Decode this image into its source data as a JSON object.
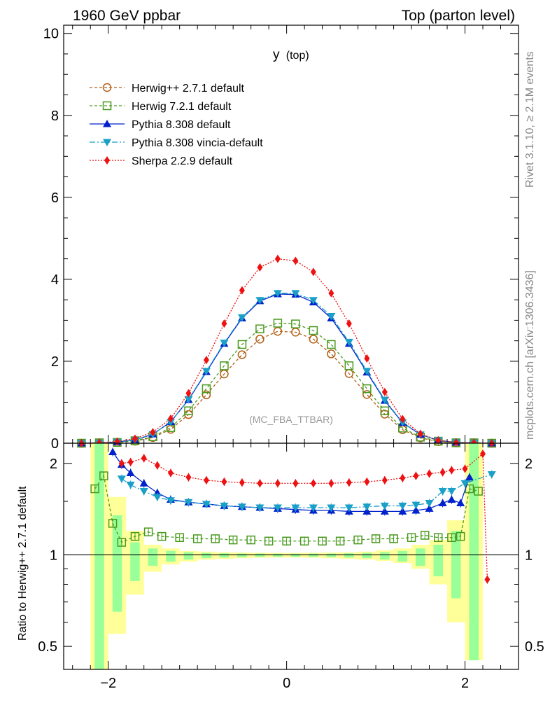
{
  "header": {
    "left": "1960 GeV ppbar",
    "right": "Top (parton level)"
  },
  "side_labels": {
    "rivet": "Rivet 3.1.10, ≥ 2.1M events",
    "mcplots": "mcplots.cern.ch [arXiv:1306.3436]"
  },
  "plot_title": {
    "main": "y",
    "sub": "(top)"
  },
  "watermark": "(MC_FBA_TTBAR)",
  "ratio_ylabel": "Ratio to Herwig++ 2.7.1 default",
  "chart_data": [
    {
      "type": "line",
      "panel": "main",
      "xlim": [
        -2.5,
        2.6
      ],
      "ylim": [
        0,
        10.2
      ],
      "yticks": [
        "0",
        "2",
        "4",
        "6",
        "8",
        "10"
      ],
      "xticks": [
        "−2",
        "0",
        "2"
      ],
      "legend_position": "top-left",
      "series": [
        {
          "name": "Herwig++ 2.7.1 default",
          "color": "#b25f16",
          "marker": "circle",
          "dash": "4,3",
          "x": [
            -2.3,
            -2.1,
            -1.9,
            -1.7,
            -1.5,
            -1.3,
            -1.1,
            -0.9,
            -0.7,
            -0.5,
            -0.3,
            -0.1,
            0.1,
            0.3,
            0.5,
            0.7,
            0.9,
            1.1,
            1.3,
            1.5,
            1.7,
            1.9,
            2.1,
            2.3
          ],
          "y": [
            0.0,
            0.01,
            0.02,
            0.05,
            0.14,
            0.34,
            0.7,
            1.18,
            1.69,
            2.16,
            2.54,
            2.73,
            2.71,
            2.54,
            2.18,
            1.7,
            1.19,
            0.71,
            0.33,
            0.13,
            0.04,
            0.01,
            0.01,
            0.0
          ]
        },
        {
          "name": "Herwig 7.2.1 default",
          "color": "#4a9a1e",
          "marker": "square",
          "dash": "4,3",
          "x": [
            -2.3,
            -2.1,
            -1.9,
            -1.7,
            -1.5,
            -1.3,
            -1.1,
            -0.9,
            -0.7,
            -0.5,
            -0.3,
            -0.1,
            0.1,
            0.3,
            0.5,
            0.7,
            0.9,
            1.1,
            1.3,
            1.5,
            1.7,
            1.9,
            2.1,
            2.3
          ],
          "y": [
            0.0,
            0.01,
            0.02,
            0.06,
            0.16,
            0.38,
            0.79,
            1.33,
            1.89,
            2.41,
            2.79,
            2.93,
            2.91,
            2.75,
            2.41,
            1.89,
            1.33,
            0.79,
            0.37,
            0.15,
            0.05,
            0.01,
            0.01,
            0.0
          ]
        },
        {
          "name": "Pythia 8.308 default",
          "color": "#0022cc",
          "marker": "triangle-up",
          "dash": "",
          "x": [
            -2.3,
            -2.1,
            -1.9,
            -1.7,
            -1.5,
            -1.3,
            -1.1,
            -0.9,
            -0.7,
            -0.5,
            -0.3,
            -0.1,
            0.1,
            0.3,
            0.5,
            0.7,
            0.9,
            1.1,
            1.3,
            1.5,
            1.7,
            1.9,
            2.1,
            2.3
          ],
          "y": [
            0.0,
            0.01,
            0.03,
            0.08,
            0.22,
            0.52,
            1.06,
            1.74,
            2.43,
            3.05,
            3.47,
            3.64,
            3.63,
            3.44,
            3.05,
            2.43,
            1.73,
            1.04,
            0.5,
            0.21,
            0.07,
            0.02,
            0.01,
            0.0
          ]
        },
        {
          "name": "Pythia 8.308 vincia-default",
          "color": "#1aa0c8",
          "marker": "triangle-down",
          "dash": "8,3,2,3",
          "x": [
            -2.3,
            -2.1,
            -1.9,
            -1.7,
            -1.5,
            -1.3,
            -1.1,
            -0.9,
            -0.7,
            -0.5,
            -0.3,
            -0.1,
            0.1,
            0.3,
            0.5,
            0.7,
            0.9,
            1.1,
            1.3,
            1.5,
            1.7,
            1.9,
            2.1,
            2.3
          ],
          "y": [
            0.0,
            0.01,
            0.03,
            0.08,
            0.22,
            0.52,
            1.07,
            1.76,
            2.45,
            3.07,
            3.49,
            3.66,
            3.66,
            3.49,
            3.1,
            2.47,
            1.76,
            1.06,
            0.51,
            0.21,
            0.07,
            0.02,
            0.01,
            0.0
          ]
        },
        {
          "name": "Sherpa 2.2.9 default",
          "color": "#ee1111",
          "marker": "diamond",
          "dash": "2,2",
          "x": [
            -2.3,
            -2.1,
            -1.9,
            -1.7,
            -1.5,
            -1.3,
            -1.1,
            -0.9,
            -0.7,
            -0.5,
            -0.3,
            -0.1,
            0.1,
            0.3,
            0.5,
            0.7,
            0.9,
            1.1,
            1.3,
            1.5,
            1.7,
            1.9,
            2.1,
            2.3
          ],
          "y": [
            0.0,
            0.01,
            0.04,
            0.11,
            0.27,
            0.6,
            1.22,
            2.03,
            2.92,
            3.73,
            4.29,
            4.5,
            4.45,
            4.18,
            3.66,
            2.92,
            2.07,
            1.25,
            0.59,
            0.23,
            0.07,
            0.02,
            0.01,
            0.0
          ]
        }
      ]
    },
    {
      "type": "line",
      "panel": "ratio",
      "xlim": [
        -2.5,
        2.6
      ],
      "ylim": [
        0.42,
        2.33
      ],
      "yticks": [
        "0.5",
        "1",
        "2"
      ],
      "xticks": [
        "−2",
        "0",
        "2"
      ],
      "series": [
        {
          "name": "Herwig 7.2.1 default",
          "color": "#4a9a1e",
          "marker": "square",
          "dash": "4,3",
          "x": [
            -2.15,
            -2.05,
            -1.95,
            -1.85,
            -1.7,
            -1.55,
            -1.4,
            -1.2,
            -1.0,
            -0.8,
            -0.6,
            -0.4,
            -0.2,
            0.0,
            0.2,
            0.4,
            0.6,
            0.8,
            1.0,
            1.2,
            1.4,
            1.55,
            1.7,
            1.85,
            1.95,
            2.05,
            2.15
          ],
          "y": [
            1.65,
            1.82,
            1.27,
            1.1,
            1.15,
            1.19,
            1.15,
            1.14,
            1.13,
            1.13,
            1.12,
            1.12,
            1.11,
            1.11,
            1.11,
            1.11,
            1.11,
            1.12,
            1.13,
            1.13,
            1.14,
            1.16,
            1.14,
            1.14,
            1.15,
            1.65,
            1.62
          ]
        },
        {
          "name": "Pythia 8.308 default",
          "color": "#0022cc",
          "marker": "triangle-up",
          "dash": "",
          "x": [
            -1.95,
            -1.85,
            -1.75,
            -1.6,
            -1.45,
            -1.3,
            -1.1,
            -0.9,
            -0.7,
            -0.5,
            -0.3,
            -0.1,
            0.1,
            0.3,
            0.5,
            0.7,
            0.9,
            1.1,
            1.3,
            1.45,
            1.6,
            1.75,
            1.85,
            1.95,
            2.05
          ],
          "y": [
            2.18,
            1.98,
            1.86,
            1.72,
            1.6,
            1.52,
            1.49,
            1.47,
            1.45,
            1.44,
            1.43,
            1.42,
            1.41,
            1.4,
            1.4,
            1.39,
            1.39,
            1.39,
            1.39,
            1.4,
            1.42,
            1.48,
            1.52,
            1.48,
            1.8
          ]
        },
        {
          "name": "Pythia 8.308 vincia-default",
          "color": "#1aa0c8",
          "marker": "triangle-down",
          "dash": "8,3,2,3",
          "x": [
            -1.85,
            -1.75,
            -1.6,
            -1.45,
            -1.3,
            -1.1,
            -0.9,
            -0.7,
            -0.5,
            -0.3,
            -0.1,
            0.1,
            0.3,
            0.5,
            0.7,
            0.9,
            1.1,
            1.3,
            1.45,
            1.6,
            1.75,
            1.85,
            2.0,
            2.3
          ],
          "y": [
            1.78,
            1.7,
            1.62,
            1.55,
            1.51,
            1.49,
            1.47,
            1.45,
            1.44,
            1.43,
            1.43,
            1.43,
            1.43,
            1.43,
            1.43,
            1.44,
            1.45,
            1.45,
            1.46,
            1.48,
            1.62,
            1.62,
            1.72,
            1.84
          ]
        },
        {
          "name": "Sherpa 2.2.9 default",
          "color": "#ee1111",
          "marker": "diamond",
          "dash": "2,2",
          "x": [
            -1.85,
            -1.75,
            -1.6,
            -1.45,
            -1.3,
            -1.1,
            -0.9,
            -0.7,
            -0.5,
            -0.3,
            -0.1,
            0.1,
            0.3,
            0.5,
            0.7,
            0.9,
            1.1,
            1.3,
            1.45,
            1.6,
            1.75,
            1.85,
            2.0,
            2.2,
            2.25
          ],
          "y": [
            2.0,
            2.02,
            2.08,
            1.97,
            1.86,
            1.8,
            1.76,
            1.74,
            1.73,
            1.72,
            1.72,
            1.72,
            1.72,
            1.72,
            1.73,
            1.74,
            1.76,
            1.79,
            1.82,
            1.85,
            1.87,
            1.9,
            1.92,
            2.15,
            0.83
          ]
        }
      ]
    }
  ]
}
